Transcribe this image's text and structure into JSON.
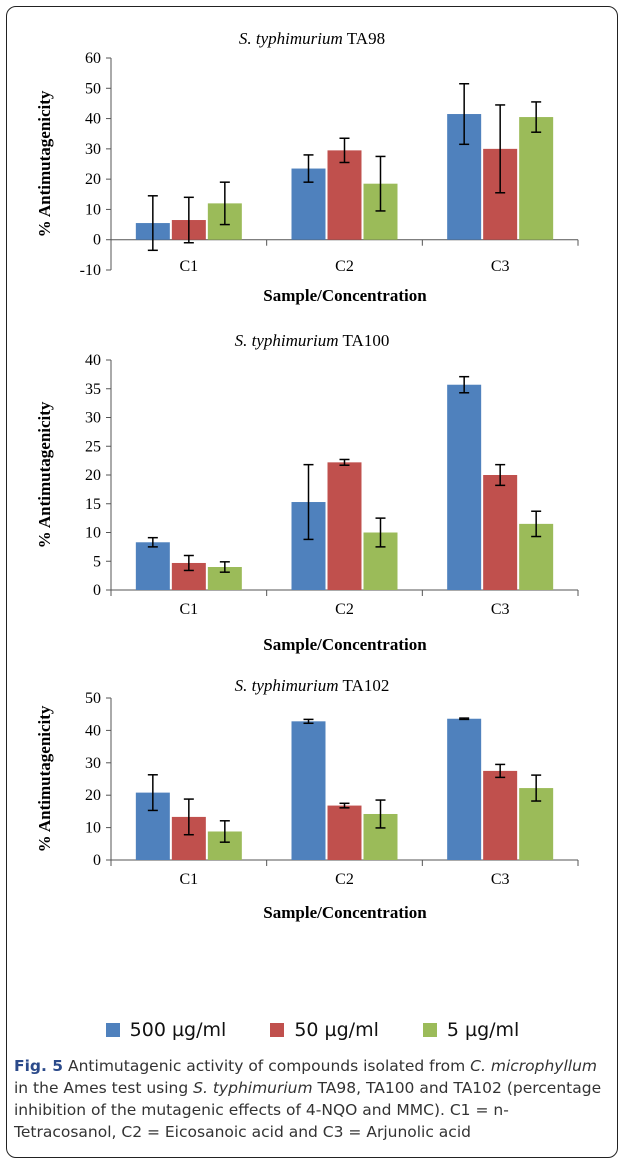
{
  "colors": {
    "500": "#4f81bd",
    "50": "#c0504d",
    "5": "#9bbb59"
  },
  "legend": [
    {
      "label": "500 µg/ml",
      "color": "#4f81bd"
    },
    {
      "label": "50 µg/ml",
      "color": "#c0504d"
    },
    {
      "label": "5 µg/ml",
      "color": "#9bbb59"
    }
  ],
  "chart_data": [
    {
      "type": "bar",
      "title_species": "S. typhimurium",
      "title_strain": "TA98",
      "xlabel": "Sample/Concentration",
      "ylabel": "% Antimutagenicity",
      "ylim": [
        -10,
        60
      ],
      "yticks": [
        -10,
        0,
        10,
        20,
        30,
        40,
        50,
        60
      ],
      "categories": [
        "C1",
        "C2",
        "C3"
      ],
      "series": [
        {
          "name": "500 µg/ml",
          "values": [
            5.5,
            23.5,
            41.5
          ],
          "errors": [
            9,
            4.5,
            10
          ]
        },
        {
          "name": "50 µg/ml",
          "values": [
            6.5,
            29.5,
            30
          ],
          "errors": [
            7.5,
            4,
            14.5
          ]
        },
        {
          "name": "5 µg/ml",
          "values": [
            12,
            18.5,
            40.5
          ],
          "errors": [
            7,
            9,
            5
          ]
        }
      ]
    },
    {
      "type": "bar",
      "title_species": "S. typhimurium",
      "title_strain": "TA100",
      "xlabel": "Sample/Concentration",
      "ylabel": "% Antimutagenicity",
      "ylim": [
        0,
        40
      ],
      "yticks": [
        0,
        5,
        10,
        15,
        20,
        25,
        30,
        35,
        40
      ],
      "categories": [
        "C1",
        "C2",
        "C3"
      ],
      "series": [
        {
          "name": "500 µg/ml",
          "values": [
            8.3,
            15.3,
            35.7
          ],
          "errors": [
            0.8,
            6.5,
            1.4
          ]
        },
        {
          "name": "50 µg/ml",
          "values": [
            4.7,
            22.2,
            20
          ],
          "errors": [
            1.3,
            0.5,
            1.8
          ]
        },
        {
          "name": "5 µg/ml",
          "values": [
            4,
            10,
            11.5
          ],
          "errors": [
            0.9,
            2.5,
            2.2
          ]
        }
      ]
    },
    {
      "type": "bar",
      "title_species": "S. typhimurium",
      "title_strain": "TA102",
      "xlabel": "Sample/Concentration",
      "ylabel": "% Antimutagenicity",
      "ylim": [
        0,
        50
      ],
      "yticks": [
        0,
        10,
        20,
        30,
        40,
        50
      ],
      "categories": [
        "C1",
        "C2",
        "C3"
      ],
      "series": [
        {
          "name": "500 µg/ml",
          "values": [
            20.8,
            42.8,
            43.6
          ],
          "errors": [
            5.5,
            0.6,
            0.2
          ]
        },
        {
          "name": "50 µg/ml",
          "values": [
            13.3,
            16.8,
            27.5
          ],
          "errors": [
            5.5,
            0.7,
            2
          ]
        },
        {
          "name": "5 µg/ml",
          "values": [
            8.8,
            14.2,
            22.2
          ],
          "errors": [
            3.3,
            4.3,
            4
          ]
        }
      ]
    }
  ],
  "caption": {
    "fig": "Fig. 5",
    "t1": " Antimutagenic activity of compounds isolated from ",
    "i1": "C. microphyllum",
    "t2": " in the Ames test using ",
    "i2": "S. typhimurium",
    "t3": " TA98, TA100 and TA102 (percentage inhibition of the mutagenic effects of 4-NQO and MMC). C1 = n-Tetracosanol, C2 = Eicosanoic acid and C3 = Arjunolic acid"
  }
}
